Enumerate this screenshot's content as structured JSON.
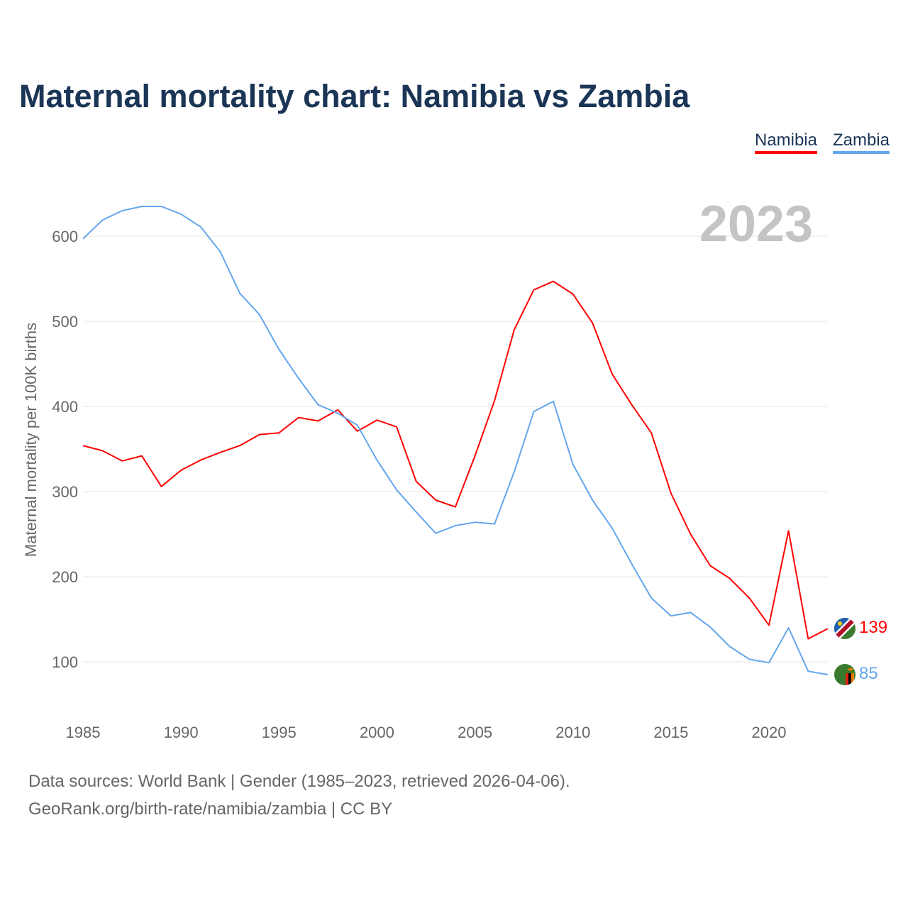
{
  "title": "Maternal mortality chart: Namibia vs Zambia",
  "year_label": "2023",
  "footer": {
    "line1": "Data sources: World Bank | Gender (1985–2023, retrieved 2026-04-06).",
    "line2": "GeoRank.org/birth-rate/namibia/zambia | CC BY"
  },
  "chart_data": {
    "type": "line",
    "title": "Maternal mortality chart: Namibia vs Zambia",
    "xlabel": "",
    "ylabel": "Maternal mortality per 100K births",
    "xlim": [
      1985,
      2023
    ],
    "ylim": [
      45,
      660
    ],
    "x_ticks": [
      1985,
      1990,
      1995,
      2000,
      2005,
      2010,
      2015,
      2020
    ],
    "y_ticks": [
      100,
      200,
      300,
      400,
      500,
      600
    ],
    "grid": true,
    "legend_placement": "top-right",
    "x": [
      1985,
      1986,
      1987,
      1988,
      1989,
      1990,
      1991,
      1992,
      1993,
      1994,
      1995,
      1996,
      1997,
      1998,
      1999,
      2000,
      2001,
      2002,
      2003,
      2004,
      2005,
      2006,
      2007,
      2008,
      2009,
      2010,
      2011,
      2012,
      2013,
      2014,
      2015,
      2016,
      2017,
      2018,
      2019,
      2020,
      2021,
      2022,
      2023
    ],
    "series": [
      {
        "name": "Namibia",
        "color": "#ff0000",
        "end_label": "139",
        "values": [
          354,
          348,
          336,
          342,
          306,
          325,
          337,
          346,
          354,
          367,
          369,
          387,
          383,
          396,
          371,
          384,
          376,
          312,
          290,
          282,
          342,
          407,
          490,
          537,
          547,
          532,
          498,
          438,
          402,
          369,
          298,
          250,
          213,
          198,
          175,
          143,
          254,
          127,
          139
        ]
      },
      {
        "name": "Zambia",
        "color": "#64a6ec",
        "end_label": "85",
        "values": [
          597,
          619,
          630,
          635,
          635,
          626,
          611,
          582,
          533,
          508,
          467,
          433,
          402,
          392,
          378,
          337,
          302,
          276,
          251,
          260,
          264,
          262,
          323,
          394,
          406,
          332,
          290,
          257,
          215,
          175,
          154,
          158,
          141,
          118,
          103,
          99,
          140,
          89,
          85
        ]
      }
    ]
  }
}
